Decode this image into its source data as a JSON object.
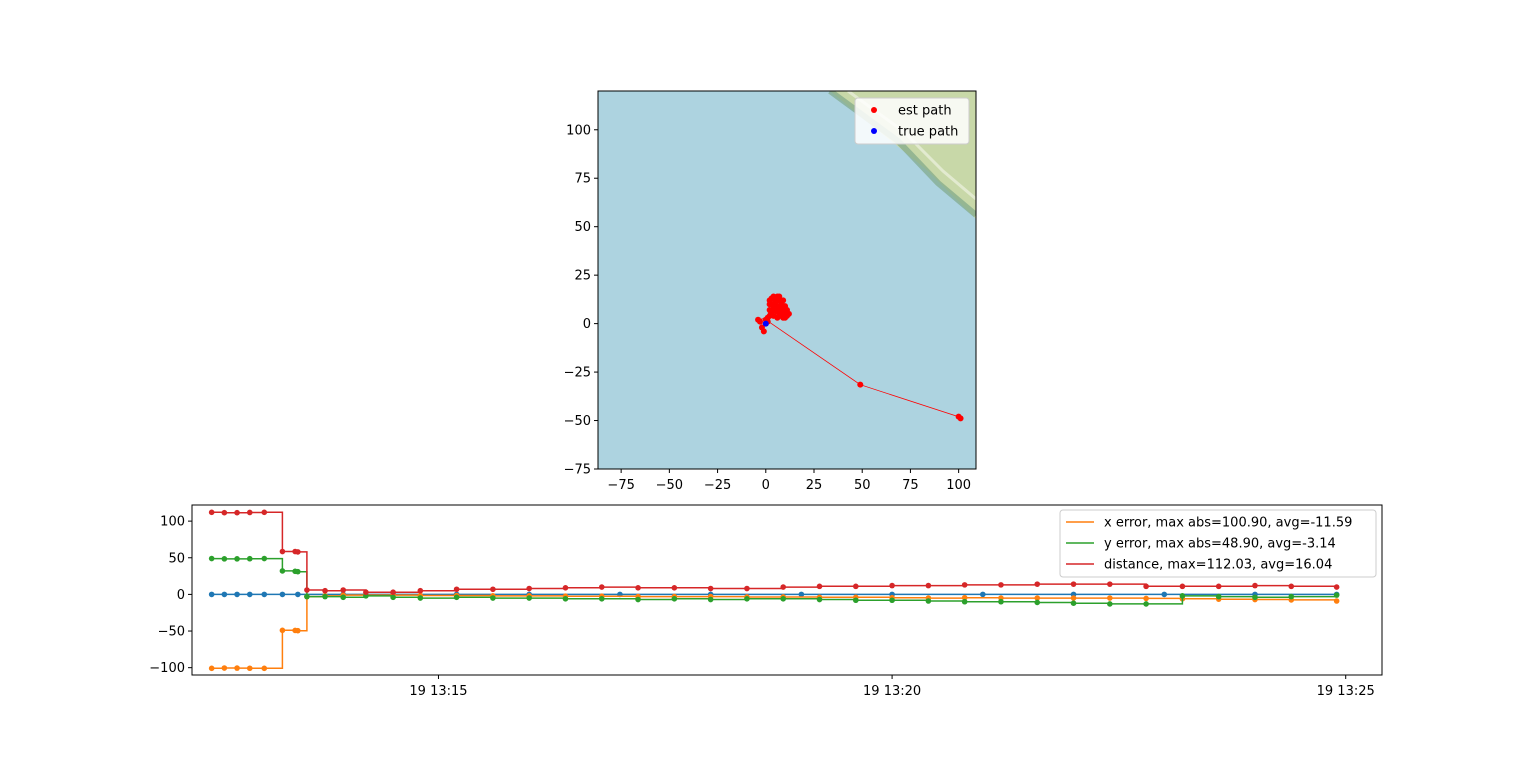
{
  "chart_data": [
    {
      "type": "scatter",
      "title": "",
      "xlabel": "",
      "ylabel": "",
      "xlim": [
        -87,
        109
      ],
      "ylim": [
        -75,
        120
      ],
      "xticks": [
        -75,
        -50,
        -25,
        0,
        25,
        50,
        75,
        100
      ],
      "yticks": [
        -75,
        -50,
        -25,
        0,
        25,
        50,
        75,
        100
      ],
      "xtick_labels": [
        "−75",
        "−50",
        "−25",
        "0",
        "25",
        "50",
        "75",
        "100"
      ],
      "ytick_labels": [
        "−75",
        "−50",
        "−25",
        "0",
        "25",
        "50",
        "75",
        "100"
      ],
      "background": "map",
      "colors": {
        "water": "#add3e0",
        "land": "#c8d8a8",
        "shore": "#7fa889"
      },
      "legend": {
        "position": "top-right",
        "entries": [
          {
            "label": "est path",
            "color": "#ff0000"
          },
          {
            "label": "true path",
            "color": "#0000ff"
          }
        ]
      },
      "series": [
        {
          "name": "est path",
          "color": "#ff0000",
          "points": [
            [
              101,
              -48.9
            ],
            [
              100,
              -48
            ],
            [
              49,
              -31.5
            ],
            [
              0,
              2
            ],
            [
              -2,
              -2
            ],
            [
              -1,
              -4
            ],
            [
              -3,
              1
            ],
            [
              -4,
              2
            ],
            [
              1,
              3
            ],
            [
              3,
              5
            ],
            [
              2,
              7
            ],
            [
              4,
              8
            ],
            [
              2,
              10
            ],
            [
              5,
              11
            ],
            [
              3,
              13
            ],
            [
              6,
              14
            ],
            [
              4,
              14
            ],
            [
              7,
              12
            ],
            [
              8,
              10
            ],
            [
              9,
              8
            ],
            [
              10,
              6
            ],
            [
              8,
              5
            ],
            [
              9,
              3
            ],
            [
              7,
              4
            ],
            [
              6,
              6
            ],
            [
              5,
              9
            ],
            [
              7,
              9
            ],
            [
              8,
              11
            ],
            [
              9,
              12
            ],
            [
              10,
              9
            ],
            [
              11,
              7
            ],
            [
              10,
              5
            ],
            [
              6,
              3
            ],
            [
              4,
              4
            ],
            [
              5,
              7
            ],
            [
              3,
              6
            ],
            [
              2,
              4
            ],
            [
              4,
              9
            ],
            [
              6,
              8
            ],
            [
              8,
              7
            ],
            [
              9,
              5
            ],
            [
              11,
              4
            ],
            [
              12,
              5
            ],
            [
              10,
              3
            ],
            [
              3,
              10
            ],
            [
              5,
              12
            ],
            [
              7,
              14
            ],
            [
              2,
              12
            ],
            [
              1,
              1
            ],
            [
              0,
              0
            ]
          ]
        },
        {
          "name": "true path",
          "color": "#0000ff",
          "points": [
            [
              0,
              0
            ]
          ]
        }
      ]
    },
    {
      "type": "line",
      "title": "",
      "xlabel": "",
      "ylabel": "",
      "x_unit": "minutes",
      "xlim": [
        "13:12:17",
        "13:25:24"
      ],
      "ylim": [
        -110,
        122
      ],
      "xticks": [
        "13:15",
        "13:20",
        "13:25"
      ],
      "xtick_labels": [
        "19 13:15",
        "19 13:20",
        "19 13:25"
      ],
      "yticks": [
        -100,
        -50,
        0,
        50,
        100
      ],
      "ytick_labels": [
        "−100",
        "−50",
        "0",
        "50",
        "100"
      ],
      "legend": {
        "position": "top-right"
      },
      "series": [
        {
          "name": "",
          "color": "#1f77b4",
          "x": [
            12.5,
            12.64,
            12.78,
            12.92,
            13.08,
            13.28,
            13.45,
            13.95,
            14.5,
            15.2,
            16,
            17,
            18,
            19,
            20,
            21,
            22,
            23,
            24,
            24.9
          ],
          "y": [
            0,
            0,
            0,
            0,
            0,
            0,
            0,
            0,
            0,
            0,
            0,
            0,
            0,
            0,
            0,
            0,
            0,
            0,
            0,
            0
          ]
        },
        {
          "name": "x error, max abs=100.90, avg=-11.59",
          "color": "#ff7f0e",
          "x": [
            12.5,
            12.64,
            12.78,
            12.92,
            13.08,
            13.28,
            13.42,
            13.45,
            13.55,
            13.75,
            13.95,
            14.2,
            14.5,
            14.8,
            15.2,
            15.6,
            16,
            16.4,
            16.8,
            17.2,
            17.6,
            18,
            18.4,
            18.8,
            19.2,
            19.6,
            20,
            20.4,
            20.8,
            21.2,
            21.6,
            22,
            22.4,
            22.8,
            23.2,
            23.6,
            24,
            24.4,
            24.9
          ],
          "y": [
            -100.9,
            -100.5,
            -100.6,
            -100.8,
            -100.9,
            -49,
            -49.2,
            -49.5,
            -3,
            -2,
            -1,
            -1,
            -1,
            -1.5,
            -1.5,
            -2,
            -2,
            -2.5,
            -2.5,
            -3,
            -3,
            -3,
            -3.5,
            -3.5,
            -4,
            -4,
            -4.5,
            -5,
            -4.5,
            -5,
            -5,
            -5,
            -5,
            -5.5,
            -6,
            -6.5,
            -7,
            -7.5,
            -9
          ]
        },
        {
          "name": "y error, max abs=48.90, avg=-3.14",
          "color": "#2ca02c",
          "x": [
            12.5,
            12.64,
            12.78,
            12.92,
            13.08,
            13.28,
            13.42,
            13.45,
            13.55,
            13.75,
            13.95,
            14.2,
            14.5,
            14.8,
            15.2,
            15.6,
            16,
            16.4,
            16.8,
            17.2,
            17.6,
            18,
            18.4,
            18.8,
            19.2,
            19.6,
            20,
            20.4,
            20.8,
            21.2,
            21.6,
            22,
            22.4,
            22.8,
            23.2,
            23.6,
            24,
            24.4,
            24.9
          ],
          "y": [
            48.9,
            48.5,
            48.5,
            48.7,
            48.9,
            32,
            31.5,
            31,
            -3,
            -3,
            -4,
            -2,
            -4,
            -5,
            -4,
            -5,
            -5,
            -6,
            -6,
            -7,
            -6,
            -7,
            -6,
            -6,
            -7,
            -8,
            -8,
            -9,
            -10,
            -10,
            -11,
            -12,
            -13,
            -13,
            -2,
            -3,
            -4,
            -3,
            -1
          ]
        },
        {
          "name": "distance, max=112.03, avg=16.04",
          "color": "#d62728",
          "x": [
            12.5,
            12.64,
            12.78,
            12.92,
            13.08,
            13.28,
            13.42,
            13.45,
            13.55,
            13.75,
            13.95,
            14.2,
            14.5,
            14.8,
            15.2,
            15.6,
            16,
            16.4,
            16.8,
            17.2,
            17.6,
            18,
            18.4,
            18.8,
            19.2,
            19.6,
            20,
            20.4,
            20.8,
            21.2,
            21.6,
            22,
            22.4,
            22.8,
            23.2,
            23.6,
            24,
            24.4,
            24.9
          ],
          "y": [
            112,
            111.5,
            111.5,
            111.8,
            112.03,
            58.5,
            58.5,
            58,
            6,
            5,
            6,
            3,
            3,
            5,
            7,
            7,
            8,
            9,
            10,
            9,
            9,
            8,
            8,
            10,
            11,
            11,
            12,
            12,
            13,
            13,
            14,
            14,
            14,
            11,
            11,
            11,
            12,
            11,
            10
          ]
        }
      ]
    }
  ]
}
